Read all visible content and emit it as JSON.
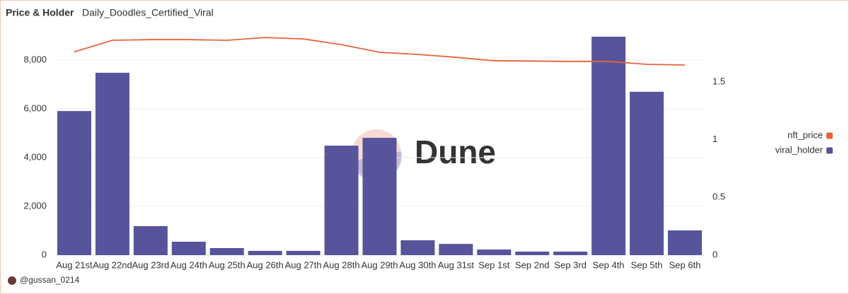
{
  "chart_data": {
    "type": "bar_line",
    "title": "Price & Holder",
    "subtitle": "Daily_Doodles_Certified_Viral",
    "watermark": "Dune",
    "author": "@gussan_0214",
    "categories": [
      "Aug 21st",
      "Aug 22nd",
      "Aug 23rd",
      "Aug 24th",
      "Aug 25th",
      "Aug 26th",
      "Aug 27th",
      "Aug 28th",
      "Aug 29th",
      "Aug 30th",
      "Aug 31st",
      "Sep 1st",
      "Sep 2nd",
      "Sep 3rd",
      "Sep 4th",
      "Sep 5th",
      "Sep 6th"
    ],
    "series": [
      {
        "name": "nft_price",
        "color": "#e8643c",
        "type": "line",
        "axis": "y2",
        "values": [
          1.76,
          1.86,
          1.866,
          1.866,
          1.86,
          1.884,
          1.872,
          1.823,
          1.756,
          1.738,
          1.713,
          1.683,
          1.68,
          1.677,
          1.677,
          1.652,
          1.646
        ]
      },
      {
        "name": "viral_holder",
        "color": "#57549b",
        "type": "bar",
        "values": [
          5910,
          7480,
          1190,
          550,
          290,
          175,
          175,
          4490,
          4810,
          610,
          460,
          230,
          145,
          145,
          8960,
          6700,
          1015
        ]
      }
    ],
    "ylim": [
      0,
      9000
    ],
    "yticks": [
      0,
      {
        "value": 2000,
        "label": "2,000"
      },
      {
        "value": 4000,
        "label": "4,000"
      },
      {
        "value": 6000,
        "label": "6,000"
      },
      {
        "value": 8000,
        "label": "8,000"
      }
    ],
    "y2lim": [
      0,
      1.9
    ],
    "y2ticks": [
      0,
      0.5,
      1,
      1.5
    ],
    "grid": true,
    "legend": "right"
  }
}
